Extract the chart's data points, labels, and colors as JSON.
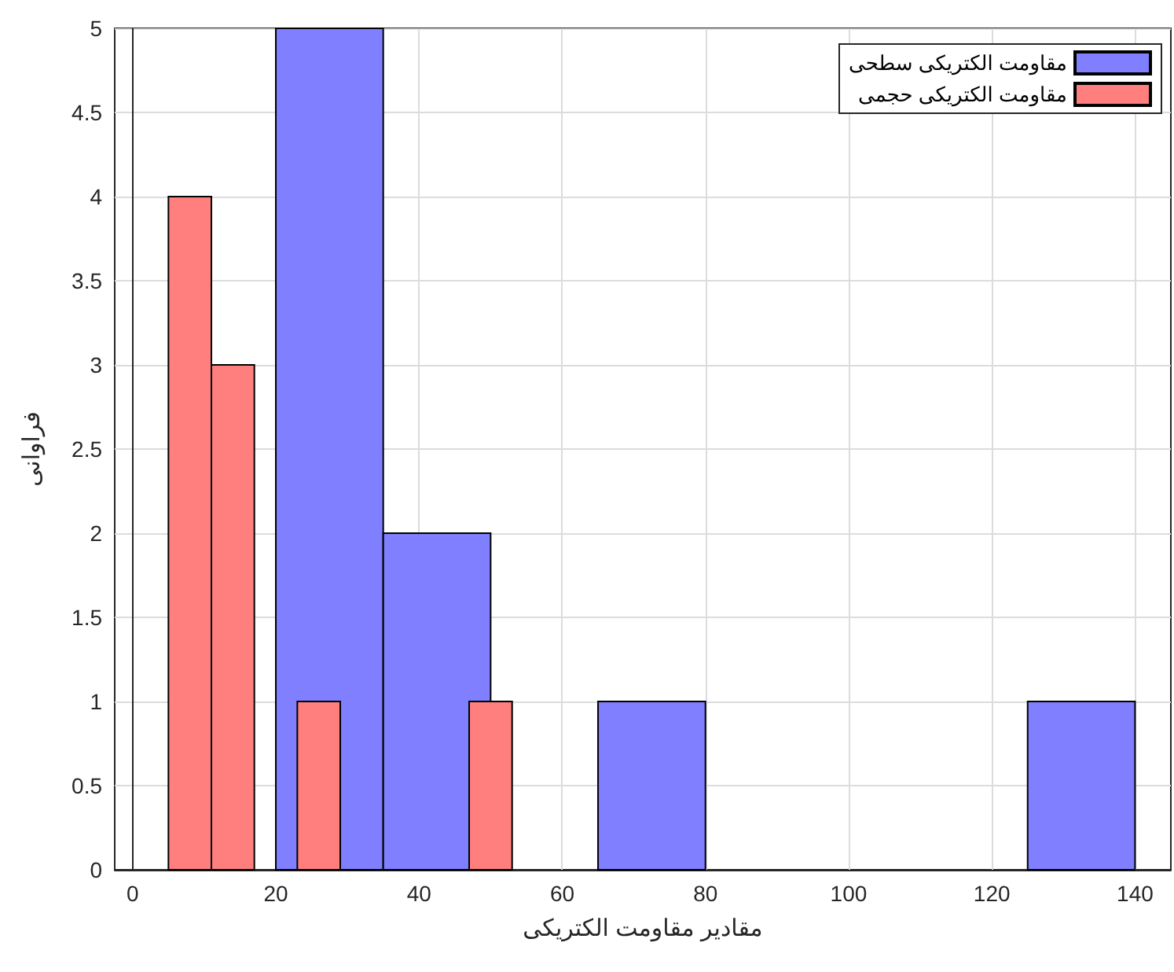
{
  "chart_data": {
    "type": "bar",
    "xlabel": "مقادیر مقاومت الکتریکی",
    "ylabel": "فراوانی",
    "series": [
      {
        "name": "مقاومت الکتریکی سطحی",
        "color": "#7f7fff",
        "x": [
          27.5,
          42.5,
          72.5,
          132.5
        ],
        "values": [
          5,
          2,
          1,
          1
        ]
      },
      {
        "name": "مقاومت الکتریکی حجمی",
        "color": "#ff7f7f",
        "x": [
          8,
          14,
          26,
          50
        ],
        "values": [
          4,
          3,
          1,
          1
        ]
      }
    ],
    "xlim": [
      -2.5,
      145
    ],
    "xticks": [
      0,
      20,
      40,
      60,
      80,
      100,
      120,
      140
    ],
    "ylim": [
      0,
      5
    ],
    "yticks": [
      0,
      0.5,
      1,
      1.5,
      2,
      2.5,
      3,
      3.5,
      4,
      4.5,
      5
    ],
    "grid": true,
    "legend": "top right"
  }
}
